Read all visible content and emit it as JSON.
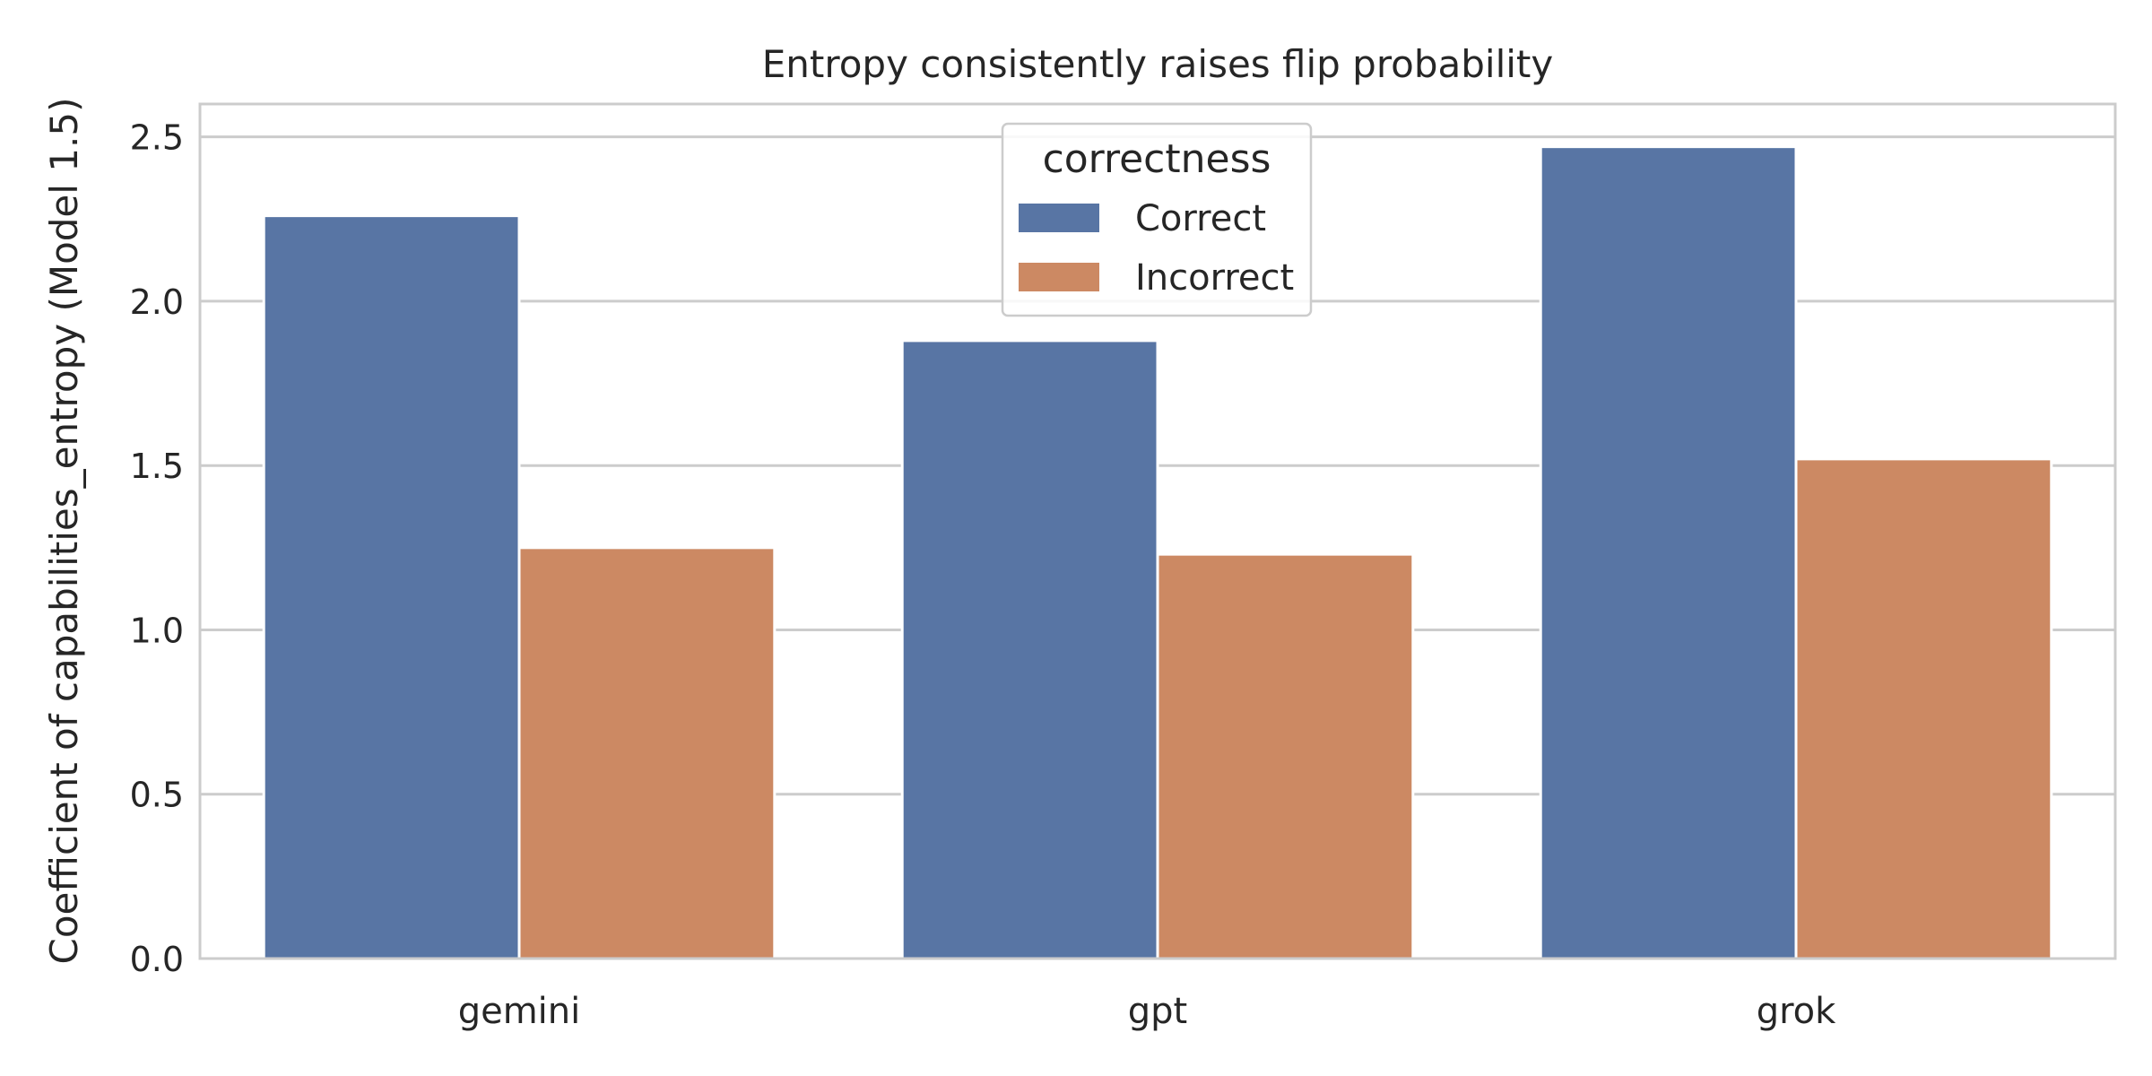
{
  "chart_data": {
    "type": "bar",
    "title": "Entropy consistently raises flip probability",
    "xlabel": "",
    "ylabel": "Coefficient of capabilities_entropy  (Model 1.5)",
    "categories": [
      "gemini",
      "gpt",
      "grok"
    ],
    "series": [
      {
        "name": "Correct",
        "color": "#5875a4",
        "values": [
          2.26,
          1.88,
          2.47
        ]
      },
      {
        "name": "Incorrect",
        "color": "#cc8963",
        "values": [
          1.25,
          1.23,
          1.52
        ]
      }
    ],
    "ylim": [
      0,
      2.6
    ],
    "yticks": [
      0.0,
      0.5,
      1.0,
      1.5,
      2.0,
      2.5
    ],
    "ytick_labels": [
      "0.0",
      "0.5",
      "1.0",
      "1.5",
      "2.0",
      "2.5"
    ],
    "grid": true,
    "legend": {
      "title": "correctness",
      "placement": "top-center"
    }
  }
}
